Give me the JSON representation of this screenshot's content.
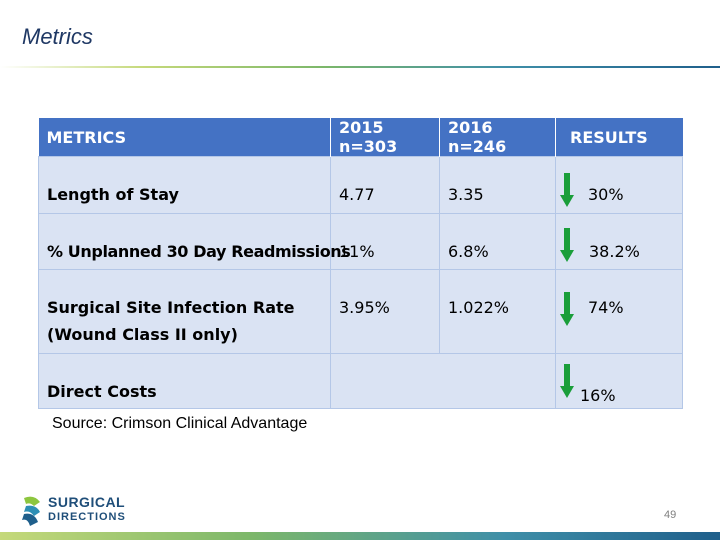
{
  "slide": {
    "title": "Metrics",
    "source": "Source: Crimson Clinical Advantage",
    "page_number": "49"
  },
  "logo": {
    "line1": "SURGICAL",
    "line2": "DIRECTIONS"
  },
  "table": {
    "headers": [
      "METRICS",
      "2015 n=303",
      "2016 n=246",
      "RESULTS"
    ],
    "rows": [
      {
        "metric": "Length of Stay",
        "y2015": "4.77",
        "y2016": "3.35",
        "result": "30%"
      },
      {
        "metric": "% Unplanned 30 Day Readmissions",
        "y2015": "11%",
        "y2016": "6.8%",
        "result": "38.2%"
      },
      {
        "metric_line1": "Surgical Site Infection Rate",
        "metric_line2": "(Wound Class II only)",
        "y2015": "3.95%",
        "y2016": "1.022%",
        "result": "74%"
      },
      {
        "metric": "Direct Costs",
        "y2015": "",
        "y2016": "",
        "result": "16%"
      }
    ]
  },
  "icons": {
    "result_arrow": "arrow-down-icon",
    "arrow_color": "#1a9e3a"
  },
  "colors": {
    "header_bg": "#4472c4",
    "cell_bg": "#dae3f3",
    "title": "#1f3864"
  }
}
